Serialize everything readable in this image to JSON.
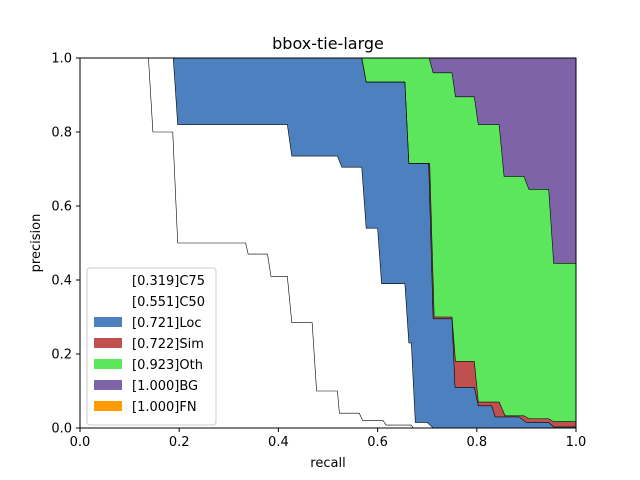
{
  "chart_data": {
    "type": "area",
    "title": "bbox-tie-large",
    "xlabel": "recall",
    "ylabel": "precision",
    "xlim": [
      0,
      1
    ],
    "ylim": [
      0,
      1
    ],
    "xticks": [
      "0.0",
      "0.2",
      "0.4",
      "0.6",
      "0.8",
      "1.0"
    ],
    "yticks": [
      "0.0",
      "0.2",
      "0.4",
      "0.6",
      "0.8",
      "1.0"
    ],
    "legend_position": "lower-left",
    "series": [
      {
        "name": "[0.319]C75",
        "color": "#ffffff",
        "points": [
          [
            0,
            1
          ],
          [
            0.138,
            1
          ],
          [
            0.147,
            0.8
          ],
          [
            0.187,
            0.8
          ],
          [
            0.197,
            0.5
          ],
          [
            0.334,
            0.5
          ],
          [
            0.339,
            0.47
          ],
          [
            0.378,
            0.47
          ],
          [
            0.385,
            0.41
          ],
          [
            0.418,
            0.41
          ],
          [
            0.427,
            0.285
          ],
          [
            0.468,
            0.285
          ],
          [
            0.477,
            0.1
          ],
          [
            0.519,
            0.1
          ],
          [
            0.523,
            0.04
          ],
          [
            0.563,
            0.04
          ],
          [
            0.57,
            0.02
          ],
          [
            0.611,
            0.02
          ],
          [
            0.617,
            0.008
          ],
          [
            0.668,
            0.008
          ],
          [
            0.672,
            0
          ],
          [
            1,
            0
          ]
        ]
      },
      {
        "name": "[0.551]C50",
        "color": "#ffffff",
        "points": [
          [
            0,
            1
          ],
          [
            0.188,
            1
          ],
          [
            0.197,
            0.82
          ],
          [
            0.418,
            0.82
          ],
          [
            0.427,
            0.735
          ],
          [
            0.519,
            0.735
          ],
          [
            0.528,
            0.705
          ],
          [
            0.568,
            0.705
          ],
          [
            0.577,
            0.54
          ],
          [
            0.6,
            0.54
          ],
          [
            0.608,
            0.39
          ],
          [
            0.655,
            0.39
          ],
          [
            0.663,
            0.23
          ],
          [
            0.668,
            0.23
          ],
          [
            0.676,
            0.015
          ],
          [
            0.7,
            0.015
          ],
          [
            0.712,
            0
          ],
          [
            1,
            0
          ]
        ]
      },
      {
        "name": "[0.721]Loc",
        "color": "#4c80bf",
        "points": [
          [
            0,
            1
          ],
          [
            0.568,
            1
          ],
          [
            0.577,
            0.935
          ],
          [
            0.655,
            0.935
          ],
          [
            0.663,
            0.715
          ],
          [
            0.703,
            0.715
          ],
          [
            0.712,
            0.295
          ],
          [
            0.75,
            0.295
          ],
          [
            0.756,
            0.11
          ],
          [
            0.795,
            0.11
          ],
          [
            0.803,
            0.06
          ],
          [
            0.83,
            0.06
          ],
          [
            0.837,
            0.03
          ],
          [
            0.885,
            0.03
          ],
          [
            0.9,
            0.015
          ],
          [
            0.945,
            0.015
          ],
          [
            0.955,
            0.003
          ],
          [
            1,
            0.003
          ]
        ]
      },
      {
        "name": "[0.722]Sim",
        "color": "#c0504d",
        "points": [
          [
            0,
            1
          ],
          [
            0.568,
            1
          ],
          [
            0.577,
            0.935
          ],
          [
            0.655,
            0.935
          ],
          [
            0.663,
            0.715
          ],
          [
            0.705,
            0.715
          ],
          [
            0.714,
            0.3
          ],
          [
            0.75,
            0.3
          ],
          [
            0.757,
            0.18
          ],
          [
            0.795,
            0.18
          ],
          [
            0.803,
            0.07
          ],
          [
            0.845,
            0.07
          ],
          [
            0.857,
            0.033
          ],
          [
            0.895,
            0.033
          ],
          [
            0.905,
            0.025
          ],
          [
            0.945,
            0.025
          ],
          [
            0.955,
            0.017
          ],
          [
            1,
            0.017
          ]
        ]
      },
      {
        "name": "[0.923]Oth",
        "color": "#5ce65c",
        "points": [
          [
            0,
            1
          ],
          [
            0.704,
            1
          ],
          [
            0.712,
            0.96
          ],
          [
            0.75,
            0.96
          ],
          [
            0.757,
            0.895
          ],
          [
            0.795,
            0.895
          ],
          [
            0.803,
            0.82
          ],
          [
            0.845,
            0.82
          ],
          [
            0.855,
            0.68
          ],
          [
            0.895,
            0.68
          ],
          [
            0.905,
            0.645
          ],
          [
            0.945,
            0.645
          ],
          [
            0.955,
            0.445
          ],
          [
            1,
            0.445
          ]
        ]
      },
      {
        "name": "[1.000]BG",
        "color": "#7f63a8",
        "points": [
          [
            0,
            1
          ],
          [
            1,
            1
          ]
        ]
      },
      {
        "name": "[1.000]FN",
        "color": "#ff9b00",
        "points": [
          [
            0,
            1
          ],
          [
            1,
            1
          ]
        ]
      }
    ]
  }
}
